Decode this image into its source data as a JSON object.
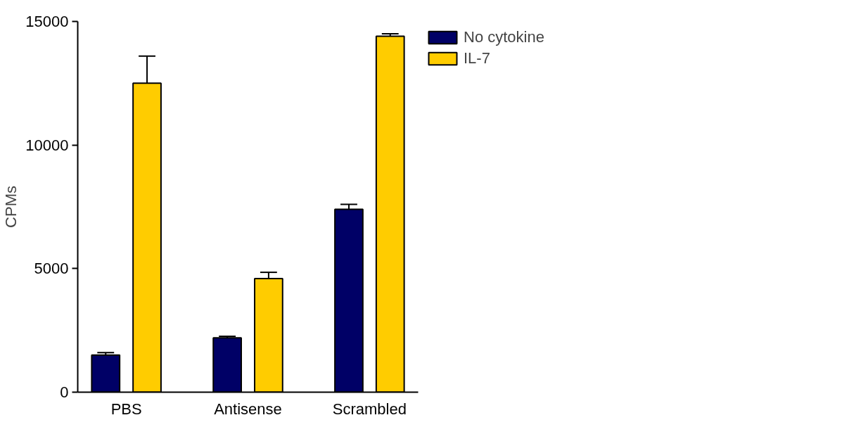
{
  "chart_data": {
    "type": "bar",
    "ylabel": "CPMs",
    "categories": [
      "PBS",
      "Antisense",
      "Scrambled"
    ],
    "series": [
      {
        "name": "No cytokine",
        "color": "#000066",
        "values": [
          1500,
          2200,
          7400
        ],
        "errors": [
          [
            1500,
            1600
          ],
          [
            2200,
            2260
          ],
          [
            7400,
            7600
          ]
        ]
      },
      {
        "name": "IL-7",
        "color": "#ffcc00",
        "values": [
          12500,
          4600,
          14400
        ],
        "errors": [
          [
            12500,
            13600
          ],
          [
            4600,
            4850
          ],
          [
            14400,
            14500
          ]
        ]
      }
    ],
    "ylim": [
      0,
      15000
    ],
    "yticks": [
      0,
      5000,
      10000,
      15000
    ],
    "grid": false,
    "legend": "top right"
  }
}
